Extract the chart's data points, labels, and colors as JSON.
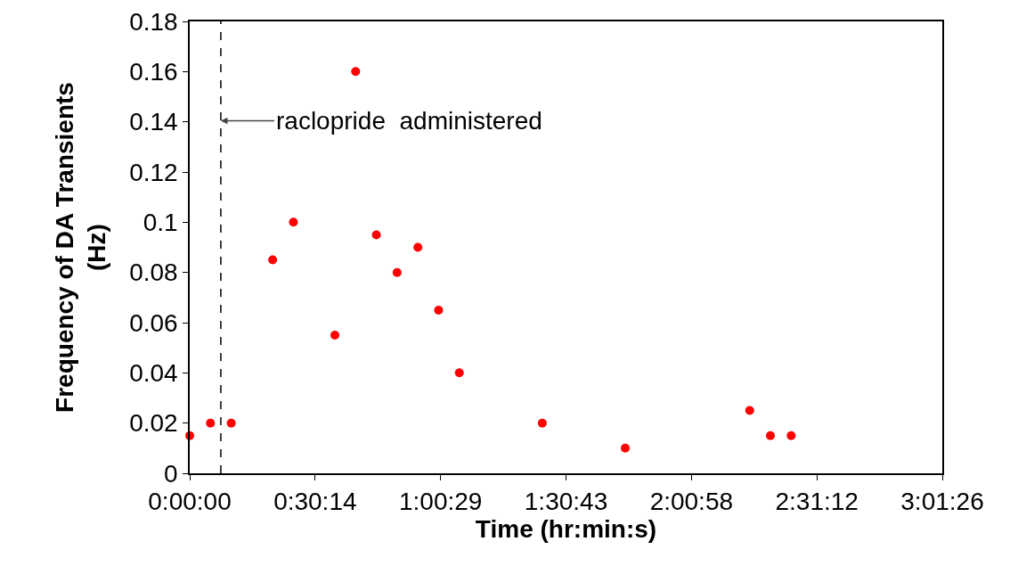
{
  "chart_data": {
    "type": "scatter",
    "xlabel": "Time (hr:min:s)",
    "ylabel": "Frequency of DA Transients\n(Hz)",
    "x": [
      0,
      0.0833,
      0.1667,
      0.3333,
      0.4167,
      0.5833,
      0.6667,
      0.75,
      0.8333,
      0.9167,
      1,
      1.0833,
      1.4167,
      1.75,
      2.25,
      2.3333,
      2.4167
    ],
    "series": [
      {
        "color": "#ff0000",
        "values": [
          0.015,
          0.02,
          0.02,
          0.085,
          0.1,
          0.055,
          0.16,
          0.095,
          0.08,
          0.09,
          0.065,
          0.04,
          0.02,
          0.01,
          0.025,
          0.015,
          0.015
        ]
      }
    ],
    "xlim": [
      0,
      3.024
    ],
    "xticks": [
      {
        "value": 0,
        "label": "0:00:00"
      },
      {
        "value": 0.504,
        "label": "0:30:14"
      },
      {
        "value": 1.008,
        "label": "1:00:29"
      },
      {
        "value": 1.512,
        "label": "1:30:43"
      },
      {
        "value": 2.016,
        "label": "2:00:58"
      },
      {
        "value": 2.52,
        "label": "2:31:12"
      },
      {
        "value": 3.024,
        "label": "3:01:26"
      }
    ],
    "ylim": [
      0,
      0.18
    ],
    "yticks": [
      0,
      0.02,
      0.04,
      0.06,
      0.08,
      0.1,
      0.12,
      0.14,
      0.16,
      0.18
    ],
    "ref_lines": [
      {
        "axis": "x",
        "value": 0.125,
        "label": "raclopride  administered",
        "color": "#000000",
        "line_style": "dashed"
      }
    ],
    "marker": "circle",
    "grid": false
  }
}
